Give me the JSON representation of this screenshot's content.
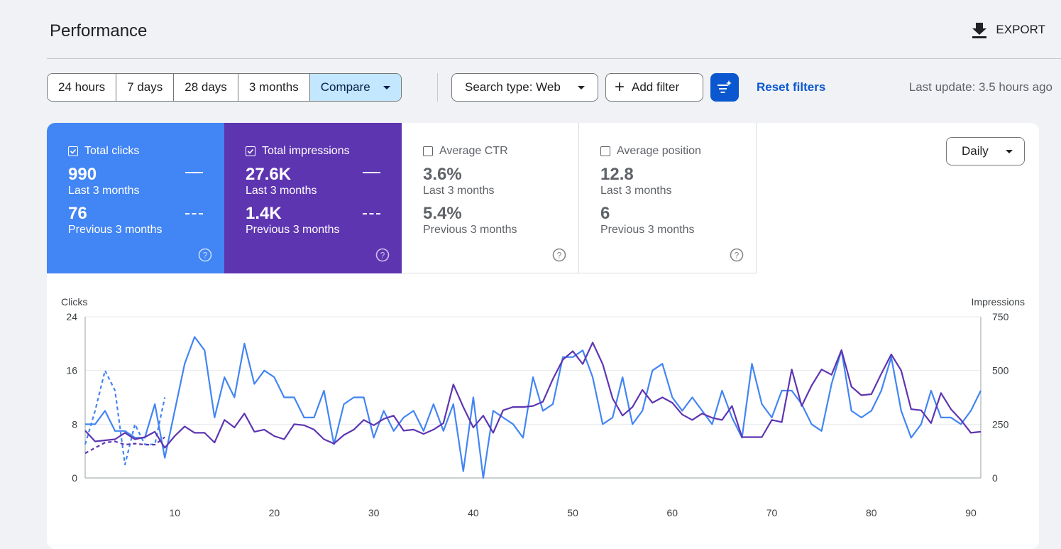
{
  "header": {
    "title": "Performance",
    "export_label": "EXPORT"
  },
  "date_range": {
    "options": [
      "24 hours",
      "7 days",
      "28 days",
      "3 months"
    ],
    "compare_label": "Compare",
    "selected": "Compare"
  },
  "filters": {
    "search_type": "Search type: Web",
    "add_filter": "Add filter",
    "reset": "Reset filters",
    "last_update": "Last update: 3.5 hours ago"
  },
  "metrics": [
    {
      "label": "Total clicks",
      "checked": true,
      "value": "990",
      "period": "Last 3 months",
      "prev_value": "76",
      "prev_period": "Previous 3 months",
      "color": "#4285f4"
    },
    {
      "label": "Total impressions",
      "checked": true,
      "value": "27.6K",
      "period": "Last 3 months",
      "prev_value": "1.4K",
      "prev_period": "Previous 3 months",
      "color": "#5e35b1"
    },
    {
      "label": "Average CTR",
      "checked": false,
      "value": "3.6%",
      "period": "Last 3 months",
      "prev_value": "5.4%",
      "prev_period": "Previous 3 months",
      "color": "#ffffff"
    },
    {
      "label": "Average position",
      "checked": false,
      "value": "12.8",
      "period": "Last 3 months",
      "prev_value": "6",
      "prev_period": "Previous 3 months",
      "color": "#ffffff"
    }
  ],
  "granularity": "Daily",
  "chart_data": {
    "type": "line",
    "ylabel_left": "Clicks",
    "ylabel_right": "Impressions",
    "y_left_ticks": [
      "0",
      "8",
      "16",
      "24"
    ],
    "y_right_ticks": [
      "0",
      "250",
      "500",
      "750"
    ],
    "ylim_left": [
      0,
      24
    ],
    "ylim_right": [
      0,
      750
    ],
    "x_ticks": [
      "10",
      "20",
      "30",
      "40",
      "50",
      "60",
      "70",
      "80",
      "90"
    ],
    "xlim": [
      1,
      91
    ],
    "grid": true,
    "series": [
      {
        "name": "Total clicks",
        "axis": "left",
        "style": "solid",
        "color": "#4285f4",
        "x": [
          1,
          2,
          3,
          4,
          5,
          6,
          7,
          8,
          9,
          10,
          11,
          12,
          13,
          14,
          15,
          16,
          17,
          18,
          19,
          20,
          21,
          22,
          23,
          24,
          25,
          26,
          27,
          28,
          29,
          30,
          31,
          32,
          33,
          34,
          35,
          36,
          37,
          38,
          39,
          40,
          41,
          42,
          43,
          44,
          45,
          46,
          47,
          48,
          49,
          50,
          51,
          52,
          53,
          54,
          55,
          56,
          57,
          58,
          59,
          60,
          61,
          62,
          63,
          64,
          65,
          66,
          67,
          68,
          69,
          70,
          71,
          72,
          73,
          74,
          75,
          76,
          77,
          78,
          79,
          80,
          81,
          82,
          83,
          84,
          85,
          86,
          87,
          88,
          89,
          90,
          91
        ],
        "y": [
          8,
          8,
          10,
          7,
          7,
          6,
          6,
          11,
          3,
          10,
          17,
          21,
          19,
          9,
          15,
          12,
          20,
          14,
          16,
          15,
          12,
          12,
          9,
          9,
          13,
          5,
          11,
          12,
          12,
          6,
          10,
          7,
          9,
          10,
          7,
          11,
          7,
          11,
          1,
          12,
          0,
          10,
          9,
          8,
          6,
          15,
          10,
          11,
          18,
          18,
          19,
          15,
          8,
          9,
          15,
          8,
          10,
          16,
          17,
          12,
          10,
          12,
          10,
          8,
          13,
          9,
          6,
          17,
          11,
          9,
          13,
          13,
          11,
          8,
          7,
          14,
          19,
          10,
          9,
          10,
          13,
          18,
          10,
          6,
          8,
          13,
          9,
          9,
          8,
          10,
          13
        ]
      },
      {
        "name": "Total impressions",
        "axis": "right",
        "style": "solid",
        "color": "#5e35b1",
        "x": [
          1,
          2,
          3,
          4,
          5,
          6,
          7,
          8,
          9,
          10,
          11,
          12,
          13,
          14,
          15,
          16,
          17,
          18,
          19,
          20,
          21,
          22,
          23,
          24,
          25,
          26,
          27,
          28,
          29,
          30,
          31,
          32,
          33,
          34,
          35,
          36,
          37,
          38,
          39,
          40,
          41,
          42,
          43,
          44,
          45,
          46,
          47,
          48,
          49,
          50,
          51,
          52,
          53,
          54,
          55,
          56,
          57,
          58,
          59,
          60,
          61,
          62,
          63,
          64,
          65,
          66,
          67,
          68,
          69,
          70,
          71,
          72,
          73,
          74,
          75,
          76,
          77,
          78,
          79,
          80,
          81,
          82,
          83,
          84,
          85,
          86,
          87,
          88,
          89,
          90,
          91
        ],
        "y": [
          220,
          170,
          175,
          180,
          210,
          180,
          190,
          215,
          140,
          195,
          240,
          210,
          210,
          165,
          270,
          235,
          300,
          215,
          225,
          195,
          180,
          250,
          245,
          225,
          180,
          160,
          200,
          225,
          270,
          245,
          275,
          290,
          220,
          225,
          205,
          225,
          255,
          435,
          330,
          235,
          290,
          210,
          315,
          330,
          330,
          335,
          355,
          460,
          550,
          590,
          530,
          630,
          530,
          370,
          290,
          330,
          410,
          350,
          375,
          350,
          295,
          270,
          300,
          280,
          270,
          335,
          190,
          190,
          190,
          270,
          260,
          505,
          335,
          430,
          505,
          480,
          595,
          425,
          385,
          390,
          485,
          575,
          500,
          320,
          315,
          255,
          395,
          320,
          270,
          210,
          215
        ]
      },
      {
        "name": "Total clicks (previous)",
        "axis": "left",
        "style": "dashed",
        "color": "#4285f4",
        "x": [
          1,
          2,
          3,
          4,
          5,
          6,
          7,
          8,
          9
        ],
        "y": [
          5,
          10,
          16,
          13,
          2,
          8,
          5,
          5,
          12
        ]
      },
      {
        "name": "Total impressions (previous)",
        "axis": "right",
        "style": "dashed",
        "color": "#5e35b1",
        "x": [
          1,
          2,
          3,
          4,
          5,
          6,
          7,
          8,
          9
        ],
        "y": [
          115,
          140,
          165,
          170,
          155,
          160,
          155,
          155,
          190
        ]
      }
    ]
  }
}
